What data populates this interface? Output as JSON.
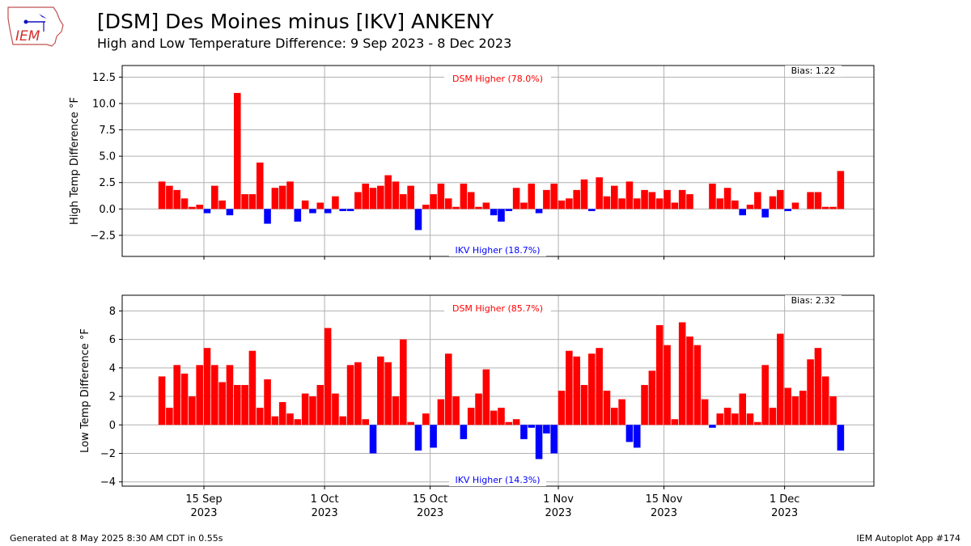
{
  "header": {
    "title": "[DSM] Des Moines minus [IKV] ANKENY",
    "subtitle": "High and Low Temperature Difference: 9 Sep 2023 - 8 Dec 2023",
    "logo_text": "IEM"
  },
  "footer": {
    "generated": "Generated at 8 May 2025 8:30 AM CDT in 0.55s",
    "app": "IEM Autoplot App #174"
  },
  "colors": {
    "positive": "#ff0000",
    "negative": "#0000ff",
    "grid": "#b0b0b0"
  },
  "chart_data": [
    {
      "type": "bar",
      "ylabel": "High Temp Difference °F",
      "ylim": [
        -4.5,
        13.6
      ],
      "yticks": [
        -2.5,
        0.0,
        2.5,
        5.0,
        7.5,
        10.0,
        12.5
      ],
      "ytick_labels": [
        "−2.5",
        "0.0",
        "2.5",
        "5.0",
        "7.5",
        "10.0",
        "12.5"
      ],
      "bias_label": "Bias: 1.22",
      "positive_label": "DSM Higher (78.0%)",
      "negative_label": "IKV Higher (18.7%)",
      "x_start": "2023-09-09",
      "values": [
        2.6,
        2.2,
        1.8,
        1.0,
        0.2,
        0.4,
        -0.4,
        2.2,
        0.8,
        -0.6,
        11.0,
        1.4,
        1.4,
        4.4,
        -1.4,
        2.0,
        2.2,
        2.6,
        -1.2,
        0.8,
        -0.4,
        0.6,
        -0.4,
        1.2,
        -0.2,
        -0.2,
        1.6,
        2.4,
        2.0,
        2.2,
        3.2,
        2.6,
        1.4,
        2.2,
        -2.0,
        0.4,
        1.4,
        2.4,
        1.0,
        0.2,
        2.4,
        1.6,
        0.2,
        0.6,
        -0.6,
        -1.2,
        -0.2,
        2.0,
        0.6,
        2.4,
        -0.4,
        1.8,
        2.4,
        0.8,
        1.0,
        1.8,
        2.8,
        -0.2,
        3.0,
        1.2,
        2.2,
        1.0,
        2.6,
        1.0,
        1.8,
        1.6,
        1.0,
        1.8,
        0.6,
        1.8,
        1.4,
        null,
        null,
        2.4,
        1.0,
        2.0,
        0.8,
        -0.6,
        0.4,
        1.6,
        -0.8,
        1.2,
        1.8,
        -0.2,
        0.6,
        null,
        1.6,
        1.6,
        0.2,
        0.2,
        3.6
      ]
    },
    {
      "type": "bar",
      "ylabel": "Low Temp Difference °F",
      "ylim": [
        -4.3,
        9.1
      ],
      "yticks": [
        -4,
        -2,
        0,
        2,
        4,
        6,
        8
      ],
      "ytick_labels": [
        "−4",
        "−2",
        "0",
        "2",
        "4",
        "6",
        "8"
      ],
      "bias_label": "Bias: 2.32",
      "positive_label": "DSM Higher (85.7%)",
      "negative_label": "IKV Higher (14.3%)",
      "x_start": "2023-09-09",
      "values": [
        3.4,
        1.2,
        4.2,
        3.6,
        2.0,
        4.2,
        5.4,
        4.2,
        3.0,
        4.2,
        2.8,
        2.8,
        5.2,
        1.2,
        3.2,
        0.6,
        1.6,
        0.8,
        0.4,
        2.2,
        2.0,
        2.8,
        6.8,
        2.2,
        0.6,
        4.2,
        4.4,
        0.4,
        -2.0,
        4.8,
        4.4,
        2.0,
        6.0,
        0.2,
        -1.8,
        0.8,
        -1.6,
        1.8,
        5.0,
        2.0,
        -1.0,
        1.2,
        2.2,
        3.9,
        1.0,
        1.2,
        0.2,
        0.4,
        -1.0,
        -0.2,
        -2.4,
        -0.6,
        -2.0,
        2.4,
        5.2,
        4.8,
        2.8,
        5.0,
        5.4,
        2.4,
        1.2,
        1.8,
        -1.2,
        -1.6,
        2.8,
        3.8,
        7.0,
        5.6,
        0.4,
        7.2,
        6.2,
        5.6,
        1.8,
        -0.2,
        0.8,
        1.2,
        0.8,
        2.2,
        0.8,
        0.2,
        4.2,
        1.2,
        6.4,
        2.6,
        2.0,
        2.4,
        4.6,
        5.4,
        3.4,
        2.0,
        -1.8
      ]
    }
  ],
  "x_axis": {
    "ticks": [
      {
        "date": "2023-09-15",
        "label": "15 Sep",
        "year": "2023"
      },
      {
        "date": "2023-10-01",
        "label": "1 Oct",
        "year": "2023"
      },
      {
        "date": "2023-10-15",
        "label": "15 Oct",
        "year": "2023"
      },
      {
        "date": "2023-11-01",
        "label": "1 Nov",
        "year": "2023"
      },
      {
        "date": "2023-11-15",
        "label": "15 Nov",
        "year": "2023"
      },
      {
        "date": "2023-12-01",
        "label": "1 Dec",
        "year": "2023"
      }
    ]
  }
}
